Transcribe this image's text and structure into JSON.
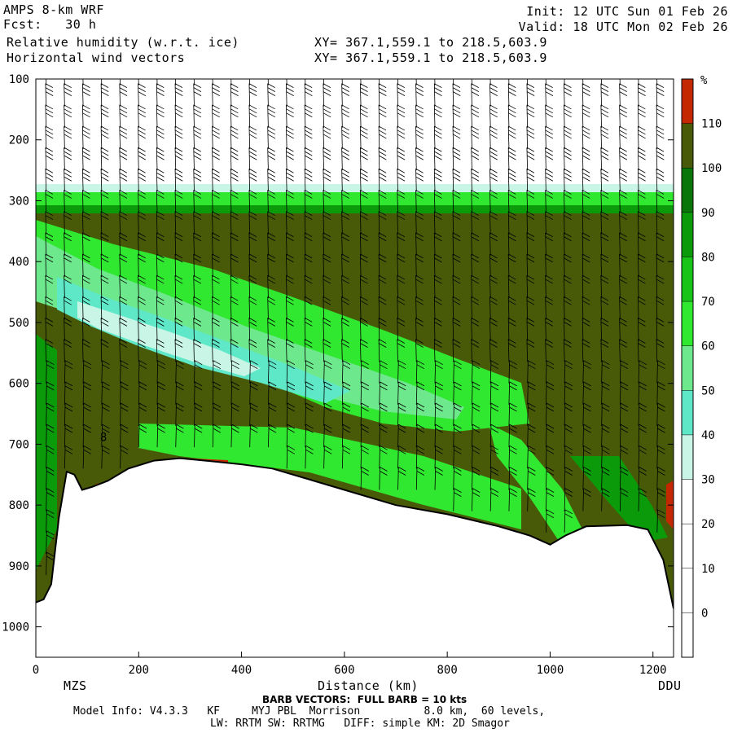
{
  "header": {
    "model": "AMPS 8-km WRF",
    "fcst": "Fcst:   30 h",
    "field1": "Relative humidity (w.r.t. ice)",
    "field2": "Horizontal wind vectors",
    "xy1": "XY= 367.1,559.1 to 218.5,603.9",
    "xy2": "XY= 367.1,559.1 to 218.5,603.9",
    "init": "Init: 12 UTC Sun 01 Feb 26",
    "valid": "Valid: 18 UTC Mon 02 Feb 26"
  },
  "footer": {
    "barb_note": "BARB VECTORS:  FULL BARB = 10 kts",
    "model_info": "Model Info: V4.3.3   KF     MYJ PBL  Morrison          8.0 km,  60 levels,",
    "physics": "LW: RRTM SW: RRTMG   DIFF: simple KM: 2D Smagor"
  },
  "chart_data": {
    "type": "heatmap",
    "title": "Relative humidity (w.r.t. ice)",
    "xlabel": "Distance (km)",
    "ylabel": "",
    "xlim": [
      0,
      1240
    ],
    "ylim": [
      1050,
      100
    ],
    "x_ticks": [
      0,
      200,
      400,
      600,
      800,
      1000,
      1200
    ],
    "y_ticks": [
      100,
      200,
      300,
      400,
      500,
      600,
      700,
      800,
      900,
      1000
    ],
    "endpoint_labels": {
      "left": "MZS",
      "right": "DDU"
    },
    "colorbar": {
      "unit": "%",
      "levels": [
        0,
        10,
        20,
        30,
        40,
        50,
        60,
        70,
        80,
        90,
        100,
        110
      ],
      "colors": [
        "#ffffff",
        "#ffffff",
        "#ffffff",
        "#ffffff",
        "#c8f5e6",
        "#5ee8c8",
        "#6ee88c",
        "#30e830",
        "#18c418",
        "#0a9a0a",
        "#087608",
        "#485a08",
        "#c42800"
      ]
    },
    "terrain_surface": [
      {
        "x": 0,
        "p": 960
      },
      {
        "x": 15,
        "p": 955
      },
      {
        "x": 30,
        "p": 930
      },
      {
        "x": 45,
        "p": 820
      },
      {
        "x": 60,
        "p": 745
      },
      {
        "x": 75,
        "p": 750
      },
      {
        "x": 90,
        "p": 775
      },
      {
        "x": 110,
        "p": 770
      },
      {
        "x": 140,
        "p": 760
      },
      {
        "x": 180,
        "p": 740
      },
      {
        "x": 230,
        "p": 727
      },
      {
        "x": 280,
        "p": 723
      },
      {
        "x": 330,
        "p": 727
      },
      {
        "x": 400,
        "p": 733
      },
      {
        "x": 460,
        "p": 740
      },
      {
        "x": 520,
        "p": 755
      },
      {
        "x": 600,
        "p": 775
      },
      {
        "x": 700,
        "p": 800
      },
      {
        "x": 800,
        "p": 815
      },
      {
        "x": 900,
        "p": 835
      },
      {
        "x": 960,
        "p": 850
      },
      {
        "x": 1000,
        "p": 865
      },
      {
        "x": 1030,
        "p": 850
      },
      {
        "x": 1070,
        "p": 835
      },
      {
        "x": 1150,
        "p": 833
      },
      {
        "x": 1190,
        "p": 840
      },
      {
        "x": 1220,
        "p": 890
      },
      {
        "x": 1240,
        "p": 970
      }
    ],
    "contour_label": {
      "text": "8",
      "x": 125,
      "p": 695
    }
  }
}
